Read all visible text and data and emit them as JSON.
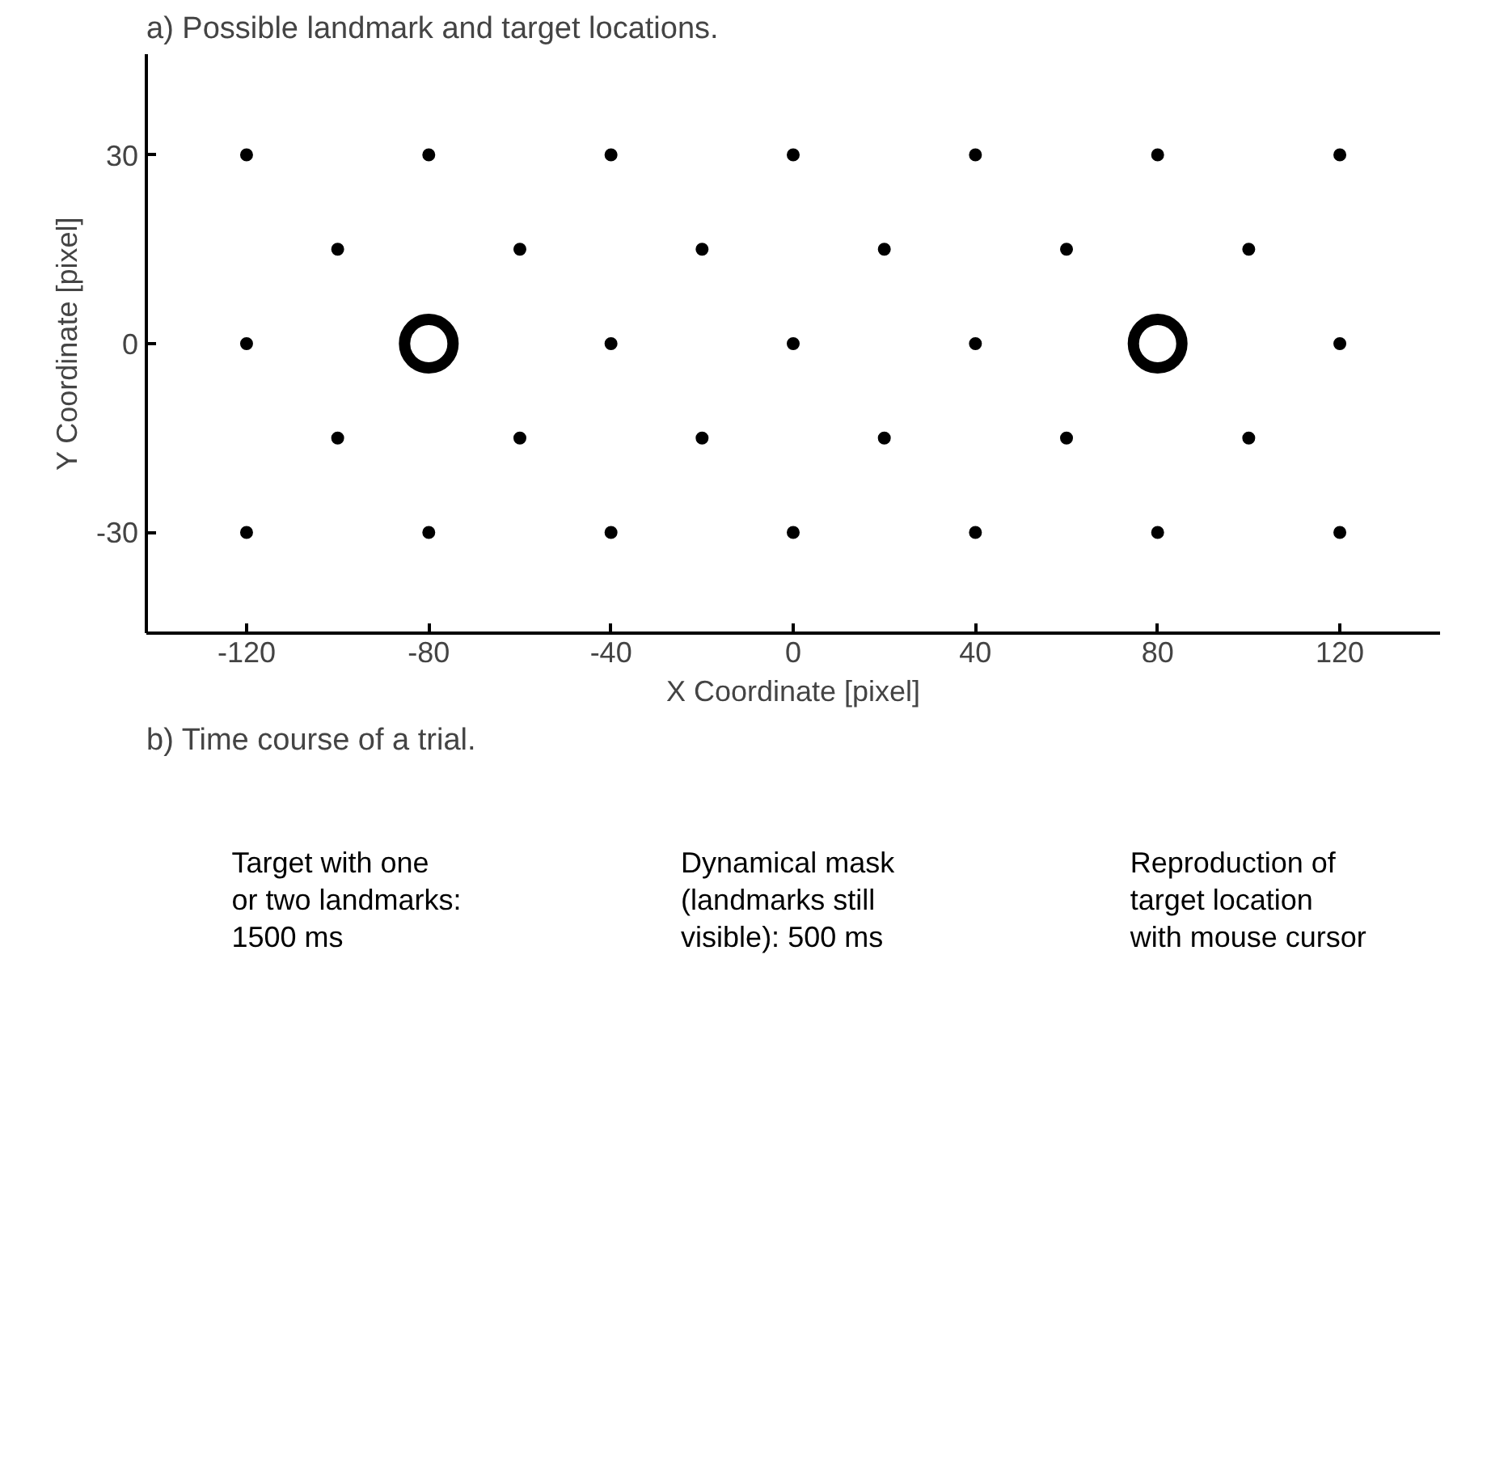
{
  "chart_data": [
    {
      "type": "scatter",
      "title": "a) Possible landmark and  target locations.",
      "xlabel": "X Coordinate [pixel]",
      "ylabel": "Y Coordinate [pixel]",
      "xlim": [
        -142,
        142
      ],
      "ylim": [
        -46,
        46
      ],
      "xticks": [
        -120,
        -80,
        -40,
        0,
        40,
        80,
        120
      ],
      "yticks": [
        -30,
        0,
        30
      ],
      "grid": false,
      "marker": "circle",
      "series": [
        {
          "color": "#000000",
          "x": [
            -120,
            -80,
            -40,
            0,
            40,
            80,
            120,
            -100,
            -60,
            -20,
            20,
            60,
            100,
            -120,
            -40,
            0,
            40,
            120,
            -100,
            -60,
            -20,
            20,
            60,
            100,
            -120,
            -80,
            -40,
            0,
            40,
            80,
            120
          ],
          "values": [
            30,
            30,
            30,
            30,
            30,
            30,
            30,
            15,
            15,
            15,
            15,
            15,
            15,
            0,
            0,
            0,
            0,
            0,
            -15,
            -15,
            -15,
            -15,
            -15,
            -15,
            -30,
            -30,
            -30,
            -30,
            -30,
            -30,
            -30
          ]
        },
        {
          "type": "bubble",
          "color": "#000000",
          "x": [
            -80,
            80
          ],
          "values": [
            0,
            0
          ],
          "sizes": [
            1,
            1
          ]
        }
      ]
    },
    {
      "type": "other",
      "title": "b) Time course of a trial.",
      "annotations": [
        "Target with one\nor two landmarks:\n1500 ms",
        "Dynamical mask\n(landmarks still\nvisible):  500 ms",
        "Reproduction of\ntarget location\nwith mouse cursor"
      ]
    }
  ]
}
